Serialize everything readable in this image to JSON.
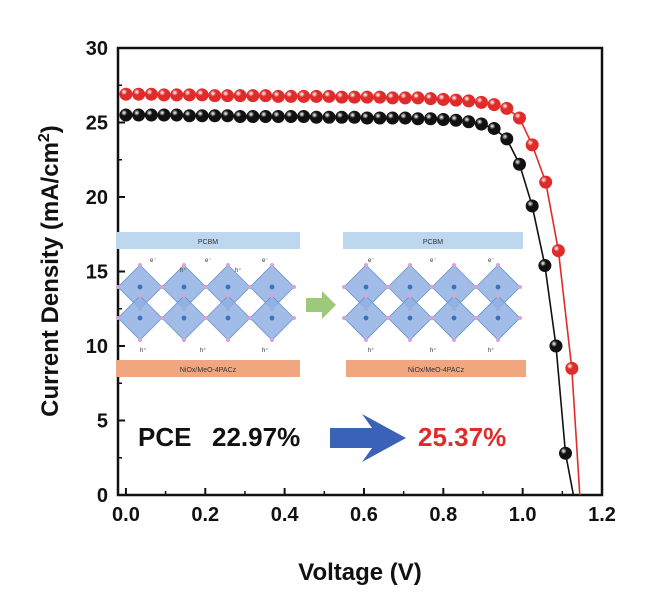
{
  "chart_data": {
    "type": "scatter",
    "xlabel": "Voltage (V)",
    "ylabel_main": "Current Density (mA/cm",
    "ylabel_sup": "2",
    "ylabel_close": ")",
    "xlim": [
      -0.02,
      1.2
    ],
    "ylim": [
      0,
      30
    ],
    "x_ticks": [
      "0.0",
      "0.2",
      "0.4",
      "0.6",
      "0.8",
      "1.0",
      "1.2"
    ],
    "y_ticks": [
      "0",
      "5",
      "10",
      "15",
      "20",
      "25",
      "30"
    ],
    "grid": false,
    "series": [
      {
        "color": "#111111",
        "points": [
          [
            0.0,
            25.5
          ],
          [
            0.032,
            25.5
          ],
          [
            0.064,
            25.5
          ],
          [
            0.096,
            25.5
          ],
          [
            0.128,
            25.5
          ],
          [
            0.16,
            25.45
          ],
          [
            0.192,
            25.45
          ],
          [
            0.224,
            25.45
          ],
          [
            0.256,
            25.45
          ],
          [
            0.288,
            25.4
          ],
          [
            0.32,
            25.4
          ],
          [
            0.352,
            25.4
          ],
          [
            0.384,
            25.4
          ],
          [
            0.416,
            25.4
          ],
          [
            0.448,
            25.4
          ],
          [
            0.48,
            25.35
          ],
          [
            0.512,
            25.35
          ],
          [
            0.544,
            25.35
          ],
          [
            0.576,
            25.35
          ],
          [
            0.608,
            25.3
          ],
          [
            0.64,
            25.3
          ],
          [
            0.672,
            25.3
          ],
          [
            0.704,
            25.3
          ],
          [
            0.736,
            25.25
          ],
          [
            0.768,
            25.25
          ],
          [
            0.8,
            25.2
          ],
          [
            0.832,
            25.15
          ],
          [
            0.864,
            25.05
          ],
          [
            0.896,
            24.9
          ],
          [
            0.928,
            24.6
          ],
          [
            0.96,
            23.9
          ],
          [
            0.992,
            22.2
          ],
          [
            1.024,
            19.4
          ],
          [
            1.056,
            15.4
          ],
          [
            1.084,
            10.0
          ],
          [
            1.108,
            2.8
          ]
        ]
      },
      {
        "color": "#e02b2b",
        "points": [
          [
            0.0,
            26.9
          ],
          [
            0.032,
            26.9
          ],
          [
            0.064,
            26.9
          ],
          [
            0.096,
            26.85
          ],
          [
            0.128,
            26.85
          ],
          [
            0.16,
            26.85
          ],
          [
            0.192,
            26.85
          ],
          [
            0.224,
            26.8
          ],
          [
            0.256,
            26.8
          ],
          [
            0.288,
            26.8
          ],
          [
            0.32,
            26.8
          ],
          [
            0.352,
            26.8
          ],
          [
            0.384,
            26.75
          ],
          [
            0.416,
            26.75
          ],
          [
            0.448,
            26.75
          ],
          [
            0.48,
            26.75
          ],
          [
            0.512,
            26.75
          ],
          [
            0.544,
            26.7
          ],
          [
            0.576,
            26.7
          ],
          [
            0.608,
            26.7
          ],
          [
            0.64,
            26.7
          ],
          [
            0.672,
            26.65
          ],
          [
            0.704,
            26.65
          ],
          [
            0.736,
            26.65
          ],
          [
            0.768,
            26.6
          ],
          [
            0.8,
            26.55
          ],
          [
            0.832,
            26.5
          ],
          [
            0.864,
            26.45
          ],
          [
            0.896,
            26.35
          ],
          [
            0.928,
            26.2
          ],
          [
            0.96,
            25.95
          ],
          [
            0.992,
            25.3
          ],
          [
            1.024,
            23.5
          ],
          [
            1.058,
            21.0
          ],
          [
            1.09,
            16.4
          ],
          [
            1.124,
            8.5
          ]
        ]
      }
    ],
    "annotations": {
      "pce_label": "PCE",
      "pce_before": "22.97%",
      "pce_after": "25.37%",
      "before_color": "#111111",
      "after_color": "#e02b2b",
      "arrow_color": "#3a63b8"
    },
    "inset": {
      "top_layer": "PCBM",
      "bottom_layer": "NiOx/MeO-4PACz",
      "electron": "e⁻",
      "hole": "h⁺",
      "top_layer_color": "#bcd7ee",
      "bottom_layer_color": "#f0a77f",
      "arrow_color": "#9cc97a"
    }
  }
}
